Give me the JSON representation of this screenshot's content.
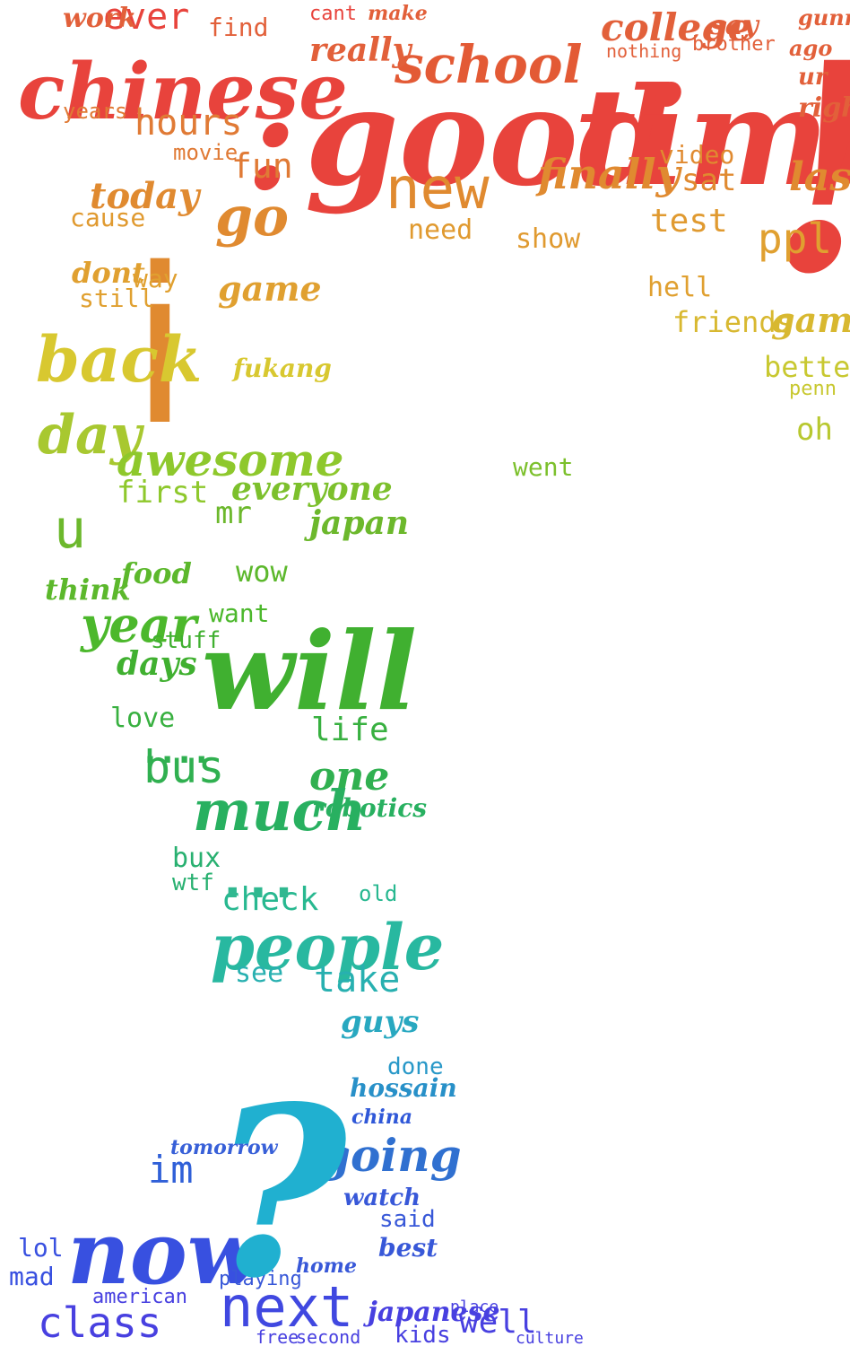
{
  "words": [
    {
      "text": "chinese",
      "color": "#e8433c",
      "cls": "s"
    },
    {
      "text": "good",
      "color": "#e8433c",
      "cls": "s"
    },
    {
      "text": "time",
      "color": "#e8433c",
      "cls": "s"
    },
    {
      "text": "!",
      "color": "#e8433c",
      "cls": "s"
    },
    {
      "text": ":",
      "color": "#e8433c",
      "cls": "s"
    },
    {
      "text": "school",
      "color": "#e35a35",
      "cls": "s"
    },
    {
      "text": "college",
      "color": "#e2603a",
      "cls": "s"
    },
    {
      "text": "really",
      "color": "#e2603a",
      "cls": "s"
    },
    {
      "text": "ever",
      "color": "#e8433c",
      "cls": "m"
    },
    {
      "text": "work",
      "color": "#e2603a",
      "cls": "s"
    },
    {
      "text": "find",
      "color": "#e2603a",
      "cls": "m"
    },
    {
      "text": "cant",
      "color": "#e8433c",
      "cls": "m"
    },
    {
      "text": "make",
      "color": "#e2603a",
      "cls": "s"
    },
    {
      "text": "say",
      "color": "#e2603a",
      "cls": "s"
    },
    {
      "text": "gunna",
      "color": "#e2603a",
      "cls": "s"
    },
    {
      "text": "brother",
      "color": "#e2603a",
      "cls": "m"
    },
    {
      "text": "nothing",
      "color": "#e2603a",
      "cls": "m"
    },
    {
      "text": "ago",
      "color": "#e2603a",
      "cls": "s"
    },
    {
      "text": "right",
      "color": "#e2603a",
      "cls": "s"
    },
    {
      "text": "ur",
      "color": "#e2603a",
      "cls": "s"
    },
    {
      "text": "hours",
      "color": "#e07a35",
      "cls": "m"
    },
    {
      "text": "years",
      "color": "#e07a35",
      "cls": "m"
    },
    {
      "text": "movie",
      "color": "#e07a35",
      "cls": "m"
    },
    {
      "text": "fun",
      "color": "#e07a35",
      "cls": "m"
    },
    {
      "text": "new",
      "color": "#e08a30",
      "cls": "m"
    },
    {
      "text": "finally",
      "color": "#e08a30",
      "cls": "s"
    },
    {
      "text": "video",
      "color": "#e08a30",
      "cls": "m"
    },
    {
      "text": "sat",
      "color": "#e08a30",
      "cls": "m"
    },
    {
      "text": "last",
      "color": "#e08a30",
      "cls": "s"
    },
    {
      "text": "today",
      "color": "#e08a30",
      "cls": "s"
    },
    {
      "text": "go",
      "color": "#e08a30",
      "cls": "s"
    },
    {
      "text": "cause",
      "color": "#e09a30",
      "cls": "m"
    },
    {
      "text": "need",
      "color": "#e09a30",
      "cls": "m"
    },
    {
      "text": "show",
      "color": "#e09a30",
      "cls": "m"
    },
    {
      "text": "test",
      "color": "#e09a30",
      "cls": "m"
    },
    {
      "text": "ppl",
      "color": "#e0a030",
      "cls": "m"
    },
    {
      "text": "i",
      "color": "#e08a30",
      "cls": "n"
    },
    {
      "text": "dont",
      "color": "#e0a030",
      "cls": "s"
    },
    {
      "text": "way",
      "color": "#e0a030",
      "cls": "m"
    },
    {
      "text": "still",
      "color": "#e0a030",
      "cls": "m"
    },
    {
      "text": "game",
      "color": "#e0a030",
      "cls": "s"
    },
    {
      "text": "hell",
      "color": "#e0a030",
      "cls": "m"
    },
    {
      "text": "friends",
      "color": "#d8b830",
      "cls": "m"
    },
    {
      "text": "games",
      "color": "#d8b830",
      "cls": "s"
    },
    {
      "text": "back",
      "color": "#d8c830",
      "cls": "s"
    },
    {
      "text": "fukang",
      "color": "#d8c830",
      "cls": "s"
    },
    {
      "text": "better",
      "color": "#c8c830",
      "cls": "m"
    },
    {
      "text": "penn",
      "color": "#c8c830",
      "cls": "m"
    },
    {
      "text": "oh",
      "color": "#b8c830",
      "cls": "m"
    },
    {
      "text": "day",
      "color": "#a8c830",
      "cls": "s"
    },
    {
      "text": "awesome",
      "color": "#8ec82c",
      "cls": "s"
    },
    {
      "text": "first",
      "color": "#8ec82c",
      "cls": "m"
    },
    {
      "text": "everyone",
      "color": "#7cc02c",
      "cls": "s"
    },
    {
      "text": "went",
      "color": "#7cc02c",
      "cls": "m"
    },
    {
      "text": "u",
      "color": "#6cb82c",
      "cls": "m"
    },
    {
      "text": "mr",
      "color": "#6cb82c",
      "cls": "m"
    },
    {
      "text": "japan",
      "color": "#6cb82c",
      "cls": "s"
    },
    {
      "text": "food",
      "color": "#5cb82c",
      "cls": "s"
    },
    {
      "text": "wow",
      "color": "#5cb82c",
      "cls": "m"
    },
    {
      "text": "think",
      "color": "#5cb82c",
      "cls": "s"
    },
    {
      "text": "year",
      "color": "#4cb82c",
      "cls": "s"
    },
    {
      "text": "want",
      "color": "#4cb82c",
      "cls": "m"
    },
    {
      "text": "will",
      "color": "#40b030",
      "cls": "s"
    },
    {
      "text": "days",
      "color": "#40b030",
      "cls": "s"
    },
    {
      "text": "stuff",
      "color": "#40b030",
      "cls": "m"
    },
    {
      "text": "love",
      "color": "#38b040",
      "cls": "m"
    },
    {
      "text": "life",
      "color": "#38b040",
      "cls": "m"
    },
    {
      "text": "bus",
      "color": "#30b050",
      "cls": "m"
    },
    {
      "text": "one",
      "color": "#30b050",
      "cls": "s"
    },
    {
      "text": "much",
      "color": "#28b060",
      "cls": "s"
    },
    {
      "text": "robotics",
      "color": "#28b060",
      "cls": "s"
    },
    {
      "text": "bux",
      "color": "#28b070",
      "cls": "m"
    },
    {
      "text": "wtf",
      "color": "#28b070",
      "cls": "m"
    },
    {
      "text": "check",
      "color": "#28b890",
      "cls": "m"
    },
    {
      "text": "old",
      "color": "#28b890",
      "cls": "m"
    },
    {
      "text": "people",
      "color": "#28b8a0",
      "cls": "s"
    },
    {
      "text": "see",
      "color": "#28b0b0",
      "cls": "m"
    },
    {
      "text": "take",
      "color": "#28b0b0",
      "cls": "m"
    },
    {
      "text": "guys",
      "color": "#28a8c0",
      "cls": "s"
    },
    {
      "text": "done",
      "color": "#2898c8",
      "cls": "m"
    },
    {
      "text": "hossain",
      "color": "#2890c8",
      "cls": "s"
    },
    {
      "text": "going",
      "color": "#3070d0",
      "cls": "s"
    },
    {
      "text": "im",
      "color": "#3060d8",
      "cls": "m"
    },
    {
      "text": "now",
      "color": "#3850e0",
      "cls": "s"
    },
    {
      "text": "lol",
      "color": "#3850e0",
      "cls": "m"
    },
    {
      "text": "mad",
      "color": "#3850e0",
      "cls": "m"
    },
    {
      "text": "said",
      "color": "#3858d8",
      "cls": "m"
    },
    {
      "text": "best",
      "color": "#3858d8",
      "cls": "s"
    },
    {
      "text": "next",
      "color": "#4048e0",
      "cls": "m"
    },
    {
      "text": "class",
      "color": "#4840e0",
      "cls": "m"
    },
    {
      "text": "american",
      "color": "#4840e0",
      "cls": "m"
    },
    {
      "text": "well",
      "color": "#4840e0",
      "cls": "m"
    },
    {
      "text": "japanese",
      "color": "#4840e0",
      "cls": "s"
    },
    {
      "text": "kids",
      "color": "#4840e0",
      "cls": "m"
    },
    {
      "text": "home",
      "color": "#3858d8",
      "cls": "s"
    },
    {
      "text": "watch",
      "color": "#3858d8",
      "cls": "s"
    },
    {
      "text": "china",
      "color": "#3058d8",
      "cls": "s"
    },
    {
      "text": "free",
      "color": "#4840e0",
      "cls": "m"
    },
    {
      "text": "second",
      "color": "#4840e0",
      "cls": "m"
    },
    {
      "text": "culture",
      "color": "#4840e0",
      "cls": "m"
    },
    {
      "text": "place",
      "color": "#4840e0",
      "cls": "m"
    },
    {
      "text": "tomorrow",
      "color": "#3860d8",
      "cls": "s"
    },
    {
      "text": "playing",
      "color": "#3858d8",
      "cls": "m"
    },
    {
      "text": "...",
      "color": "#30b890",
      "cls": "n"
    },
    {
      "text": "?",
      "color": "#20b0d0",
      "cls": "s"
    },
    {
      "text": "....",
      "color": "#30b050",
      "cls": "n"
    }
  ]
}
